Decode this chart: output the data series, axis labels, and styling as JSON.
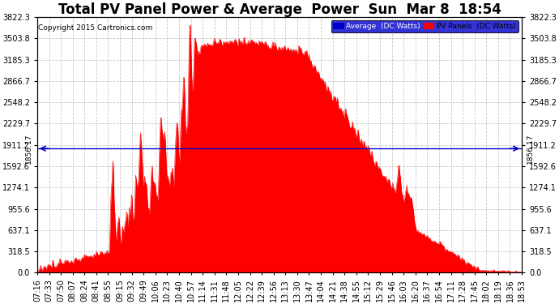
{
  "title": "Total PV Panel Power & Average  Power  Sun  Mar 8  18:54",
  "copyright": "Copyright 2015 Cartronics.com",
  "avg_label": "Average  (DC Watts)",
  "pv_label": "PV Panels  (DC Watts)",
  "avg_value": 1856.17,
  "y_max": 3822.3,
  "yticks": [
    0.0,
    318.5,
    637.1,
    955.6,
    1274.1,
    1592.6,
    1911.2,
    2229.7,
    2548.2,
    2866.7,
    3185.3,
    3503.8,
    3822.3
  ],
  "background_color": "#ffffff",
  "plot_bg_color": "#ffffff",
  "fill_color": "#ff0000",
  "line_color": "#ff0000",
  "avg_line_color": "#0000cc",
  "grid_color": "#bbbbbb",
  "title_fontsize": 12,
  "tick_fontsize": 7,
  "xtick_labels": [
    "07:16",
    "07:33",
    "07:50",
    "08:07",
    "08:24",
    "08:41",
    "08:55",
    "09:15",
    "09:32",
    "09:49",
    "10:06",
    "10:23",
    "10:40",
    "10:57",
    "11:14",
    "11:31",
    "11:48",
    "12:05",
    "12:22",
    "12:39",
    "12:56",
    "13:13",
    "13:30",
    "13:47",
    "14:04",
    "14:21",
    "14:38",
    "14:55",
    "15:12",
    "15:29",
    "15:46",
    "16:03",
    "16:20",
    "16:37",
    "16:54",
    "17:11",
    "17:28",
    "17:45",
    "18:02",
    "18:19",
    "18:36",
    "18:53"
  ],
  "num_points": 700
}
